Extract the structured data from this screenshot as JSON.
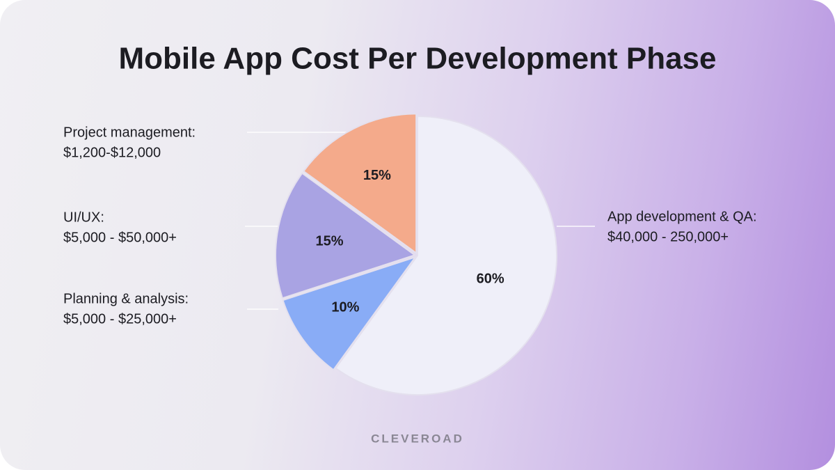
{
  "chart_data": {
    "type": "pie",
    "title": "Mobile App Cost Per Development Phase",
    "categories": [
      "App development & QA:",
      "Planning & analysis:",
      "UI/UX:",
      "Project management:"
    ],
    "cost_ranges": [
      "$40,000 - 250,000+",
      "$5,000 - $25,000+",
      "$5,000 - $50,000+",
      "$1,200-$12,000"
    ],
    "values": [
      60,
      10,
      15,
      15
    ],
    "value_labels": [
      "60%",
      "10%",
      "15%",
      "15%"
    ],
    "colors": [
      "#efeff9",
      "#89acf6",
      "#a9a3e3",
      "#f4aa8b"
    ],
    "brand": "CLEVEROAD"
  }
}
